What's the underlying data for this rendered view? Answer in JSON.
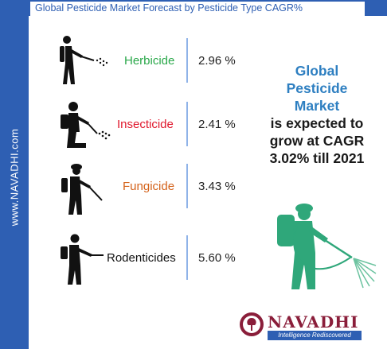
{
  "header": {
    "title": "Global Pesticide Market Forecast by Pesticide Type CAGR%"
  },
  "sidebar": {
    "brand": "www.NAVADHI.com"
  },
  "pesticides": [
    {
      "label": "Herbicide",
      "value": "2.96 %",
      "color": "#2aa84a"
    },
    {
      "label": "Insecticide",
      "value": "2.41 %",
      "color": "#e0182d"
    },
    {
      "label": "Fungicide",
      "value": "3.43 %",
      "color": "#d4621a"
    },
    {
      "label": "Rodenticides",
      "value": "5.60 %",
      "color": "#111111"
    }
  ],
  "headline": {
    "line1": "Global",
    "line2": "Pesticide",
    "line3": "Market",
    "line4": "is expected to",
    "line5": "grow at CAGR",
    "line6": "3.02% till 2021"
  },
  "logo": {
    "name": "NAVADHI",
    "tagline": "Intelligence Rediscovered"
  },
  "colors": {
    "brand_blue": "#2e5fb3",
    "headline_blue": "#2e7fc1",
    "sprayer_green": "#2fa77a",
    "logo_maroon": "#8a1e3a"
  }
}
